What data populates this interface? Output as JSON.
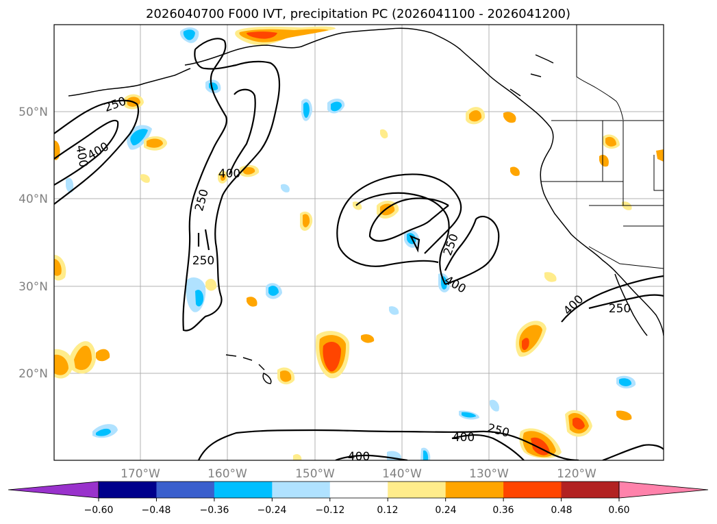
{
  "chart_data": {
    "type": "map-contour",
    "title": "2026040700 F000 IVT, precipitation PC (2026041100 - 2026041200)",
    "lat_labels": [
      "50°N",
      "40°N",
      "30°N",
      "20°N"
    ],
    "lon_labels": [
      "170°W",
      "160°W",
      "150°W",
      "140°W",
      "130°W",
      "120°W"
    ],
    "colorbar": {
      "ticks": [
        "−0.60",
        "−0.48",
        "−0.36",
        "−0.24",
        "−0.12",
        "0.12",
        "0.24",
        "0.36",
        "0.48",
        "0.60"
      ],
      "colors": [
        "#9932cc",
        "#00008b",
        "#3a5fcd",
        "#00bfff",
        "#b0e2ff",
        "#ffffff",
        "#ffec8b",
        "#ffa500",
        "#ff4500",
        "#b22222",
        "#ff82ab"
      ]
    },
    "contour_levels": [
      "250",
      "400"
    ],
    "contour_labels": [
      {
        "text": "250"
      },
      {
        "text": "400"
      },
      {
        "text": "400"
      },
      {
        "text": "250"
      },
      {
        "text": "400"
      },
      {
        "text": "250"
      },
      {
        "text": "400"
      },
      {
        "text": "250"
      },
      {
        "text": "400"
      },
      {
        "text": "250"
      },
      {
        "text": "400"
      },
      {
        "text": "250"
      },
      {
        "text": "400"
      }
    ]
  }
}
